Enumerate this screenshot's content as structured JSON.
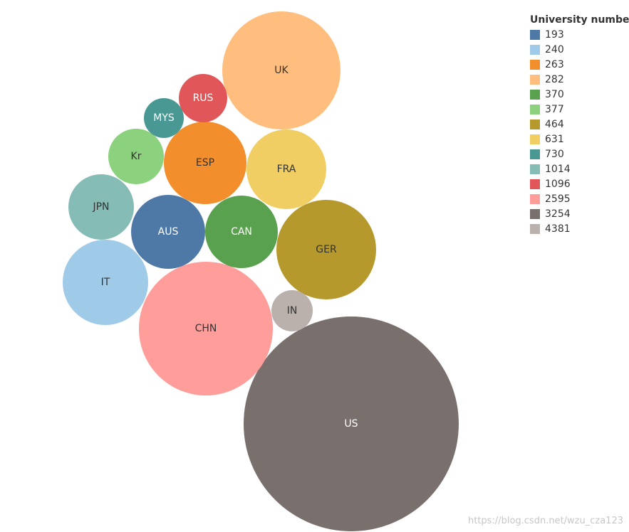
{
  "chart_data": {
    "type": "bubble",
    "legend": {
      "title": "University number",
      "entries": [
        {
          "label": "193",
          "color": "#4e79a7"
        },
        {
          "label": "240",
          "color": "#a0cbe8"
        },
        {
          "label": "263",
          "color": "#f28e2b"
        },
        {
          "label": "282",
          "color": "#ffbe7d"
        },
        {
          "label": "370",
          "color": "#59a14f"
        },
        {
          "label": "377",
          "color": "#8cd17d"
        },
        {
          "label": "464",
          "color": "#b6992d"
        },
        {
          "label": "631",
          "color": "#f1ce63"
        },
        {
          "label": "730",
          "color": "#499894"
        },
        {
          "label": "1014",
          "color": "#86bcb6"
        },
        {
          "label": "1096",
          "color": "#e15759"
        },
        {
          "label": "2595",
          "color": "#ff9d9a"
        },
        {
          "label": "3254",
          "color": "#79706e"
        },
        {
          "label": "4381",
          "color": "#bab0ac"
        }
      ]
    },
    "bubbles": [
      {
        "label": "US",
        "value": 3254,
        "color": "#79706e",
        "text_color": "#ffffff"
      },
      {
        "label": "CHN",
        "value": 2595,
        "color": "#ff9d9a",
        "text_color": "#333333"
      },
      {
        "label": "UK",
        "value": 282,
        "color": "#ffbe7d",
        "text_color": "#333333"
      },
      {
        "label": "GER",
        "value": 464,
        "color": "#b6992d",
        "text_color": "#333333"
      },
      {
        "label": "FRA",
        "value": 631,
        "color": "#f1ce63",
        "text_color": "#333333"
      },
      {
        "label": "ESP",
        "value": 263,
        "color": "#f28e2b",
        "text_color": "#333333"
      },
      {
        "label": "CAN",
        "value": 370,
        "color": "#59a14f",
        "text_color": "#ffffff"
      },
      {
        "label": "AUS",
        "value": 193,
        "color": "#4e79a7",
        "text_color": "#ffffff"
      },
      {
        "label": "IT",
        "value": 240,
        "color": "#a0cbe8",
        "text_color": "#333333"
      },
      {
        "label": "JPN",
        "value": 1014,
        "color": "#86bcb6",
        "text_color": "#333333"
      },
      {
        "label": "Kr",
        "value": 377,
        "color": "#8cd17d",
        "text_color": "#333333"
      },
      {
        "label": "MYS",
        "value": 730,
        "color": "#499894",
        "text_color": "#ffffff"
      },
      {
        "label": "RUS",
        "value": 1096,
        "color": "#e15759",
        "text_color": "#ffffff"
      },
      {
        "label": "IN",
        "value": 4381,
        "color": "#bab0ac",
        "text_color": "#333333"
      }
    ]
  },
  "watermark": "https://blog.csdn.net/wzu_cza123"
}
